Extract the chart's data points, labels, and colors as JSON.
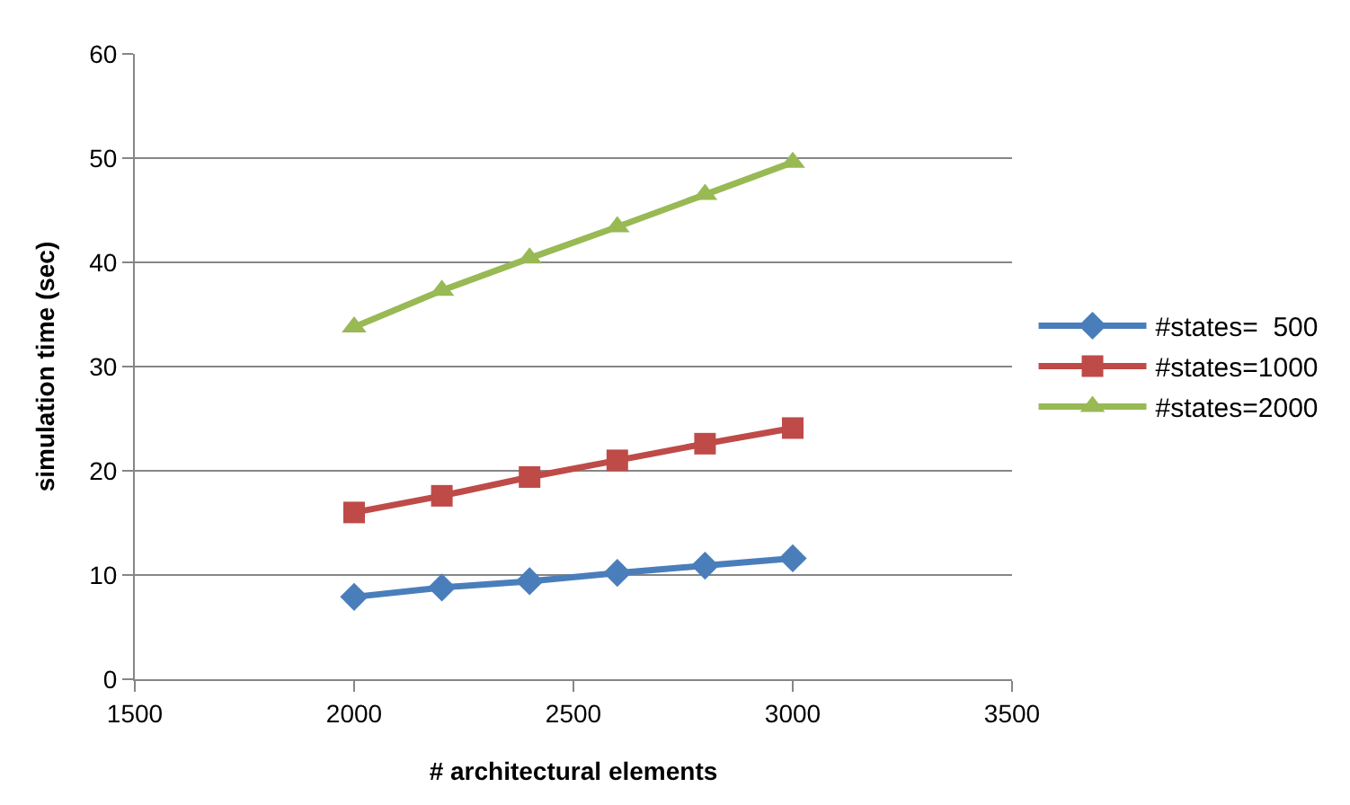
{
  "chart_data": {
    "type": "line",
    "xlabel": "# architectural elements",
    "ylabel": "simulation time (sec)",
    "x": [
      2000,
      2200,
      2400,
      2600,
      2800,
      3000
    ],
    "series": [
      {
        "name": "#states=  500",
        "color": "#4a7ebb",
        "marker": "diamond",
        "values": [
          7.9,
          8.8,
          9.4,
          10.2,
          10.9,
          11.6
        ]
      },
      {
        "name": "#states=1000",
        "color": "#be4b48",
        "marker": "square",
        "values": [
          16.0,
          17.6,
          19.4,
          21.0,
          22.6,
          24.1
        ]
      },
      {
        "name": "#states=2000",
        "color": "#98b954",
        "marker": "triangle",
        "values": [
          33.8,
          37.3,
          40.4,
          43.4,
          46.5,
          49.6
        ]
      }
    ],
    "xlim": [
      1500,
      3500
    ],
    "xticks": [
      1500,
      2000,
      2500,
      3000,
      3500
    ],
    "ylim": [
      0,
      60
    ],
    "yticks": [
      0,
      10,
      20,
      30,
      40,
      50,
      60
    ],
    "grid": "y",
    "legend": "right"
  }
}
